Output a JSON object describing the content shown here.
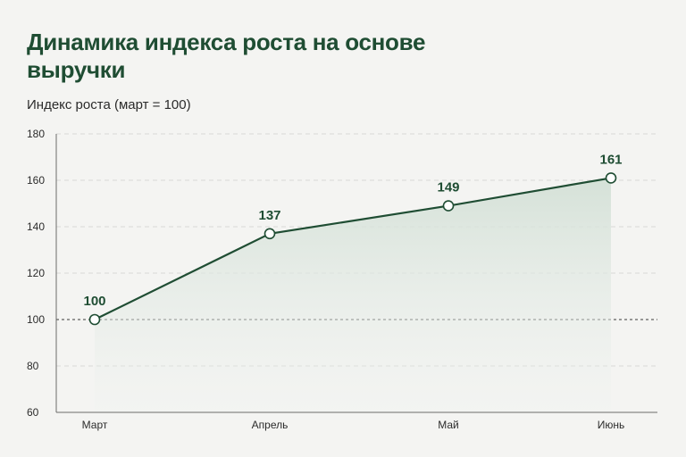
{
  "chart_data": {
    "type": "area",
    "title": "Динамика индекса роста на основе выручки",
    "ylabel": "Индекс роста (март = 100)",
    "xlabel": "",
    "categories": [
      "Март",
      "Апрель",
      "Май",
      "Июнь"
    ],
    "values": [
      100,
      137,
      149,
      161
    ],
    "data_labels": [
      "100",
      "137",
      "149",
      "161"
    ],
    "yticks": [
      60,
      80,
      100,
      120,
      140,
      160,
      180
    ],
    "ylim": [
      60,
      180
    ],
    "reference_line": 100,
    "grid": true,
    "legend": "none",
    "colors": {
      "line": "#1f4d33",
      "area": "#dfe8e1",
      "grid": "#d9d9d6",
      "marker_fill": "#ffffff"
    }
  }
}
